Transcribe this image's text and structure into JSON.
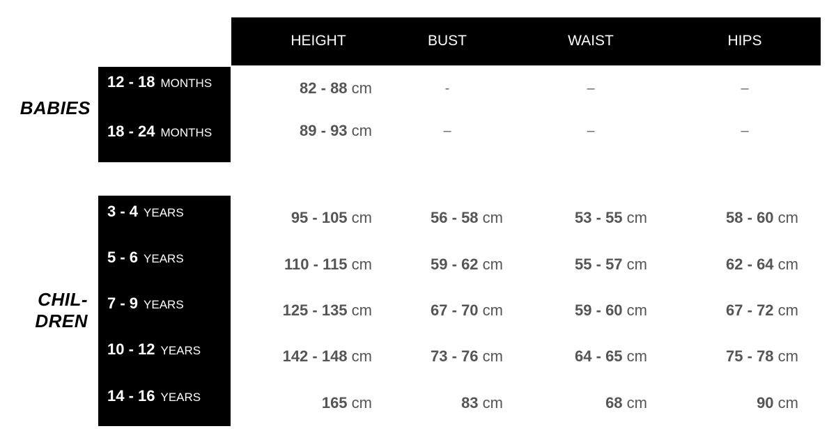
{
  "columns": [
    "HEIGHT",
    "BUST",
    "WAIST",
    "HIPS"
  ],
  "sections": [
    {
      "label_lines": [
        "BABIES"
      ],
      "rows": [
        {
          "range": "12 - 18",
          "unit": "MONTHS",
          "values": [
            {
              "range": "82 - 88",
              "unit": "cm"
            },
            {
              "range": "-",
              "unit": ""
            },
            {
              "range": "–",
              "unit": ""
            },
            {
              "range": "–",
              "unit": ""
            }
          ]
        },
        {
          "range": "18 - 24",
          "unit": "MONTHS",
          "values": [
            {
              "range": "89 - 93",
              "unit": "cm"
            },
            {
              "range": "–",
              "unit": ""
            },
            {
              "range": "–",
              "unit": ""
            },
            {
              "range": "–",
              "unit": ""
            }
          ]
        }
      ]
    },
    {
      "label_lines": [
        "CHIL-",
        "DREN"
      ],
      "rows": [
        {
          "range": "3 - 4",
          "unit": "YEARS",
          "values": [
            {
              "range": "95 - 105",
              "unit": "cm"
            },
            {
              "range": "56 - 58",
              "unit": "cm"
            },
            {
              "range": "53 - 55",
              "unit": "cm"
            },
            {
              "range": "58 - 60",
              "unit": "cm"
            }
          ]
        },
        {
          "range": "5 - 6",
          "unit": "YEARS",
          "values": [
            {
              "range": "110 - 115",
              "unit": "cm"
            },
            {
              "range": "59 - 62",
              "unit": "cm"
            },
            {
              "range": "55 - 57",
              "unit": "cm"
            },
            {
              "range": "62 - 64",
              "unit": "cm"
            }
          ]
        },
        {
          "range": "7 - 9",
          "unit": "YEARS",
          "values": [
            {
              "range": "125 - 135",
              "unit": "cm"
            },
            {
              "range": "67 - 70",
              "unit": "cm"
            },
            {
              "range": "59 - 60",
              "unit": "cm"
            },
            {
              "range": "67 - 72",
              "unit": "cm"
            }
          ]
        },
        {
          "range": "10 - 12",
          "unit": "YEARS",
          "values": [
            {
              "range": "142 - 148",
              "unit": "cm"
            },
            {
              "range": "73 - 76",
              "unit": "cm"
            },
            {
              "range": "64 - 65",
              "unit": "cm"
            },
            {
              "range": "75 - 78",
              "unit": "cm"
            }
          ]
        },
        {
          "range": "14 - 16",
          "unit": "YEARS",
          "values": [
            {
              "range": "165",
              "unit": "cm"
            },
            {
              "range": "83",
              "unit": "cm"
            },
            {
              "range": "68",
              "unit": "cm"
            },
            {
              "range": "90",
              "unit": "cm"
            }
          ]
        }
      ]
    }
  ]
}
